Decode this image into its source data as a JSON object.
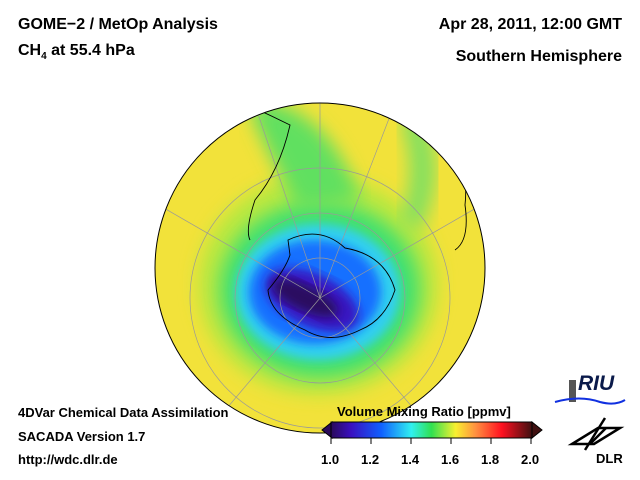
{
  "header": {
    "title": "GOME−2 / MetOp Analysis",
    "species": "CH",
    "species_sub": "4",
    "level": " at 55.4 hPa",
    "datetime": "Apr 28, 2011, 12:00 GMT",
    "region": "Southern Hemisphere"
  },
  "footer": {
    "line1": "4DVar Chemical Data Assimilation",
    "line2": "SACADA Version 1.7",
    "line3": "http://wdc.dlr.de"
  },
  "colorbar": {
    "title": "Volume Mixing Ratio [ppmv]",
    "ticks": [
      "1.0",
      "1.2",
      "1.4",
      "1.6",
      "1.8",
      "2.0"
    ],
    "min": 1.0,
    "max": 2.0,
    "colors": [
      "#2a0a5a",
      "#3a10c0",
      "#1060ff",
      "#30d8ff",
      "#30e050",
      "#f8f030",
      "#ff9040",
      "#ff1020",
      "#401010"
    ]
  },
  "logos": {
    "riu": "RIU",
    "dlr": "DLR"
  }
}
